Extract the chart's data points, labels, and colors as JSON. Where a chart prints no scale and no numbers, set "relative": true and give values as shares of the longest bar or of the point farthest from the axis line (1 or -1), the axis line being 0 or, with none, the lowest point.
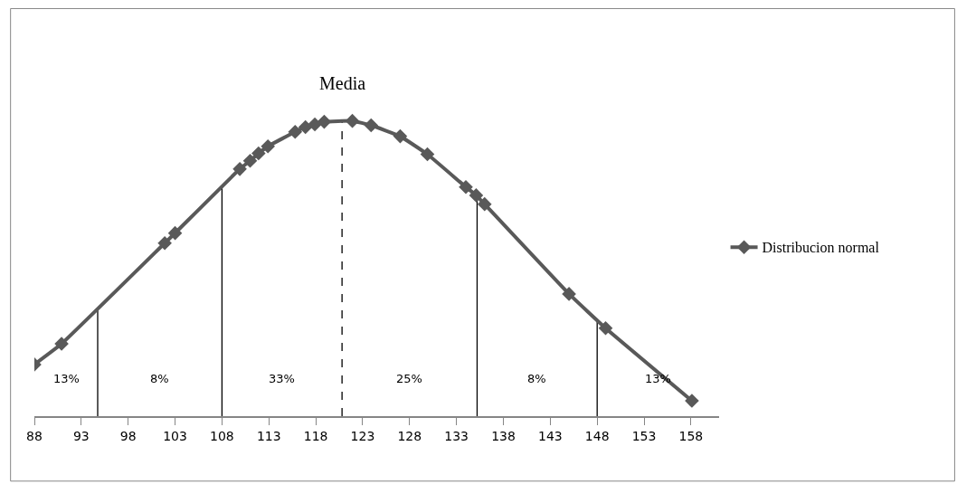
{
  "chart_data": {
    "type": "line",
    "relative": true,
    "x": [
      88,
      90.9,
      101.9,
      103,
      109.9,
      111,
      111.9,
      112.9,
      115.8,
      116.9,
      117.9,
      118.9,
      121.9,
      123.9,
      127,
      129.9,
      134,
      135.1,
      136,
      145,
      148.9,
      158.1
    ],
    "series": [
      {
        "name": "Distribucion normal",
        "color": "#595959",
        "values": [
          0.175,
          0.245,
          0.586,
          0.62,
          0.837,
          0.865,
          0.89,
          0.914,
          0.963,
          0.979,
          0.988,
          0.997,
          1.0,
          0.985,
          0.948,
          0.887,
          0.776,
          0.748,
          0.718,
          0.414,
          0.298,
          0.052
        ]
      }
    ],
    "xlim": [
      88,
      161
    ],
    "xticks": [
      88,
      93,
      98,
      103,
      108,
      113,
      118,
      123,
      128,
      133,
      138,
      143,
      148,
      153,
      158
    ],
    "tick_labels": "x",
    "grid": false,
    "legend": "right",
    "marker": "diamond",
    "line_style": "solid",
    "ref_lines": [
      {
        "axis": "x",
        "value": 94.75,
        "color": "#000000",
        "line_style": "solid"
      },
      {
        "axis": "x",
        "value": 108,
        "color": "#000000",
        "line_style": "solid"
      },
      {
        "axis": "x",
        "value": 120.8,
        "label": "Media",
        "color": "#000000",
        "line_style": "dashed"
      },
      {
        "axis": "x",
        "value": 135.2,
        "color": "#000000",
        "line_style": "solid"
      },
      {
        "axis": "x",
        "value": 148,
        "color": "#000000",
        "line_style": "solid"
      }
    ],
    "annotations": [
      "13%",
      "8%",
      "33%",
      "25%",
      "8%",
      "13%"
    ]
  }
}
